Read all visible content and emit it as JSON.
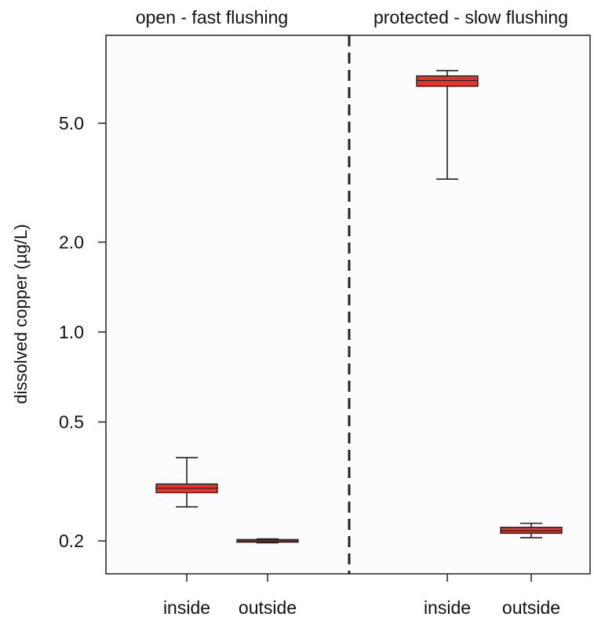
{
  "chart_data": {
    "type": "box",
    "ylabel": "dissolved copper (µg/L)",
    "yscale": "log",
    "ylim": [
      0.185,
      7.8
    ],
    "yticks": [
      0.2,
      0.5,
      1.0,
      2.0,
      5.0
    ],
    "ytick_labels": [
      "0.2",
      "0.5",
      "1.0",
      "2.0",
      "5.0"
    ],
    "box_color": "#e8332a",
    "panels": [
      {
        "title": "open - fast flushing",
        "categories": [
          "inside",
          "outside"
        ],
        "boxes": [
          {
            "category": "inside",
            "whisker_low": 0.26,
            "q1": 0.29,
            "median": 0.3,
            "q3": 0.31,
            "whisker_high": 0.38
          },
          {
            "category": "outside",
            "whisker_low": 0.197,
            "q1": 0.198,
            "median": 0.2,
            "q3": 0.202,
            "whisker_high": 0.203
          }
        ]
      },
      {
        "title": "protected - slow flushing",
        "categories": [
          "inside",
          "outside"
        ],
        "boxes": [
          {
            "category": "inside",
            "whisker_low": 3.25,
            "q1": 6.65,
            "median": 6.95,
            "q3": 7.2,
            "whisker_high": 7.5
          },
          {
            "category": "outside",
            "whisker_low": 0.205,
            "q1": 0.212,
            "median": 0.216,
            "q3": 0.222,
            "whisker_high": 0.229
          }
        ]
      }
    ],
    "divider": "dashed vertical line between panels"
  }
}
